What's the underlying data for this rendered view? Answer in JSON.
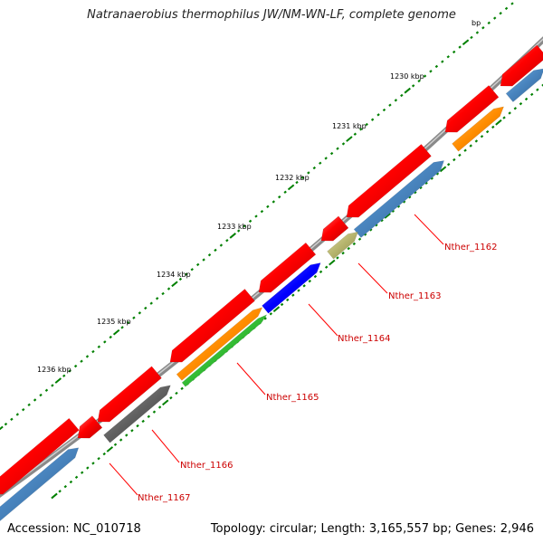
{
  "header": {
    "title": "Natranaerobius thermophilus JW/NM-WN-LF, complete genome"
  },
  "footer": {
    "accession": "Accession: NC_010718",
    "summary": "Topology: circular; Length: 3,165,557 bp; Genes: 2,946"
  },
  "colors": {
    "backbone": "#8c8c8c",
    "forward_gene": "#ff0000",
    "reverse_gene": "#4a86c0",
    "tick": "#008000",
    "gene_label": "#cc0000"
  },
  "tick_labels": [
    "1230 kbp",
    "1231 kbp",
    "1232 kbp",
    "1233 kbp",
    "1234 kbp",
    "1235 kbp",
    "1236 kbp",
    "bp"
  ],
  "gene_labels": [
    "Nther_1162",
    "Nther_1163",
    "Nther_1164",
    "Nther_1165",
    "Nther_1166",
    "Nther_1167"
  ],
  "feature_colors": [
    "#ff8c00",
    "#b5b36c",
    "#0000ff",
    "#ff8c00",
    "#33bb33",
    "#606060"
  ]
}
